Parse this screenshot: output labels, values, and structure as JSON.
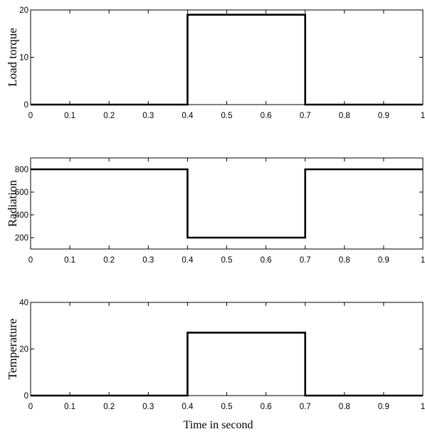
{
  "chart_data": [
    {
      "type": "line",
      "ylabel": "Load torque",
      "xlabel": "",
      "xlim": [
        0,
        1
      ],
      "ylim": [
        0,
        20
      ],
      "xticks": [
        "0",
        "0.1",
        "0.2",
        "0.3",
        "0.4",
        "0.5",
        "0.6",
        "0.7",
        "0.8",
        "0.9",
        "1"
      ],
      "yticks": [
        0,
        10,
        20
      ],
      "grid": false,
      "series": [
        {
          "x": [
            0,
            0.4,
            0.4,
            0.7,
            0.7,
            1
          ],
          "y": [
            0,
            0,
            19,
            19,
            0,
            0
          ]
        }
      ]
    },
    {
      "type": "line",
      "ylabel": "Radiation",
      "xlabel": "",
      "xlim": [
        0,
        1
      ],
      "ylim": [
        100,
        900
      ],
      "xticks": [
        "0",
        "0.1",
        "0.2",
        "0.3",
        "0.4",
        "0.5",
        "0.6",
        "0.7",
        "0.8",
        "0.9",
        "1"
      ],
      "yticks": [
        200,
        400,
        600,
        800
      ],
      "grid": false,
      "series": [
        {
          "x": [
            0,
            0.4,
            0.4,
            0.7,
            0.7,
            1
          ],
          "y": [
            800,
            800,
            200,
            200,
            800,
            800
          ]
        }
      ]
    },
    {
      "type": "line",
      "ylabel": "Temperature",
      "xlabel": "Time in second",
      "xlim": [
        0,
        1
      ],
      "ylim": [
        0,
        40
      ],
      "xticks": [
        "0",
        "0.1",
        "0.2",
        "0.3",
        "0.4",
        "0.5",
        "0.6",
        "0.7",
        "0.8",
        "0.9",
        "1"
      ],
      "yticks": [
        0,
        20,
        40
      ],
      "grid": false,
      "series": [
        {
          "x": [
            0,
            0.4,
            0.4,
            0.7,
            0.7,
            1
          ],
          "y": [
            0,
            0,
            27,
            27,
            0,
            0
          ]
        }
      ]
    }
  ]
}
